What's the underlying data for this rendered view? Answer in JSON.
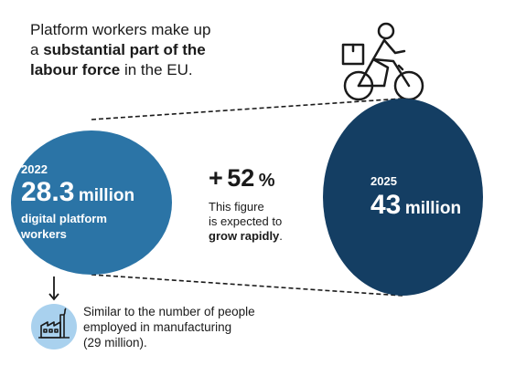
{
  "intro": {
    "part1": "Platform workers make up",
    "part2": "a ",
    "bold1": "substantial part of the",
    "bold2": "labour force",
    "part3": " in the EU."
  },
  "left_circle": {
    "year": "2022",
    "value": "28.3",
    "unit": "million",
    "label_line1": "digital platform",
    "label_line2": "workers"
  },
  "middle": {
    "sign": "+",
    "value": "52",
    "unit": "%",
    "line1": "This figure",
    "line2": "is expected to",
    "bold": "grow rapidly",
    "end": "."
  },
  "right_circle": {
    "year": "2025",
    "value": "43",
    "unit": "million"
  },
  "bottom": {
    "line1": "Similar to the number of people",
    "line2": "employed in manufacturing",
    "line3": "(29 million)."
  },
  "colors": {
    "circle_2022": "#2b74a6",
    "circle_2025": "#143e63",
    "factory_bg": "#a9d1ee",
    "text": "#1a1a1a"
  },
  "icons": [
    "cyclist-delivery-icon",
    "factory-icon",
    "arrow-down-icon"
  ]
}
